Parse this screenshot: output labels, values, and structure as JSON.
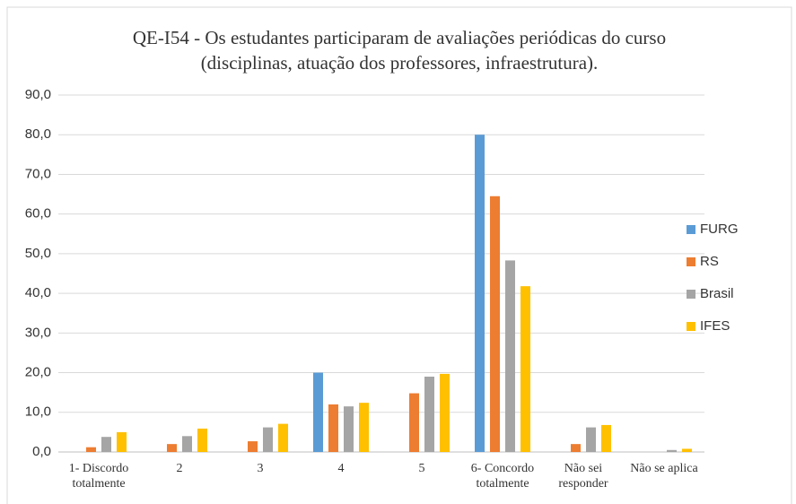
{
  "chart_data": {
    "type": "bar",
    "title": [
      "QE-I54 - Os estudantes participaram de avaliações periódicas do curso",
      "(disciplinas, atuação dos professores, infraestrutura)."
    ],
    "categories": [
      "1- Discordo totalmente",
      "2",
      "3",
      "4",
      "5",
      "6- Concordo totalmente",
      "Não sei responder",
      "Não se aplica"
    ],
    "series": [
      {
        "name": "FURG",
        "color": "#5b9bd5",
        "values": [
          0,
          0,
          0,
          20.0,
          0,
          80.0,
          0,
          0
        ]
      },
      {
        "name": "RS",
        "color": "#ed7d31",
        "values": [
          1.2,
          2.0,
          2.7,
          12.0,
          14.8,
          64.5,
          2.0,
          0
        ]
      },
      {
        "name": "Brasil",
        "color": "#a5a5a5",
        "values": [
          3.8,
          4.0,
          6.2,
          11.5,
          19.0,
          48.3,
          6.2,
          0.5
        ]
      },
      {
        "name": "IFES",
        "color": "#ffc000",
        "values": [
          5.0,
          5.9,
          7.1,
          12.4,
          19.7,
          41.8,
          6.8,
          0.8
        ]
      }
    ],
    "ylim": [
      0,
      90
    ],
    "yticks": [
      {
        "value": 0,
        "label": "0,0"
      },
      {
        "value": 10,
        "label": "10,0"
      },
      {
        "value": 20,
        "label": "20,0"
      },
      {
        "value": 30,
        "label": "30,0"
      },
      {
        "value": 40,
        "label": "40,0"
      },
      {
        "value": 50,
        "label": "50,0"
      },
      {
        "value": 60,
        "label": "60,0"
      },
      {
        "value": 70,
        "label": "70,0"
      },
      {
        "value": 80,
        "label": "80,0"
      },
      {
        "value": 90,
        "label": "90,0"
      }
    ],
    "grid": true,
    "legend": "right"
  }
}
